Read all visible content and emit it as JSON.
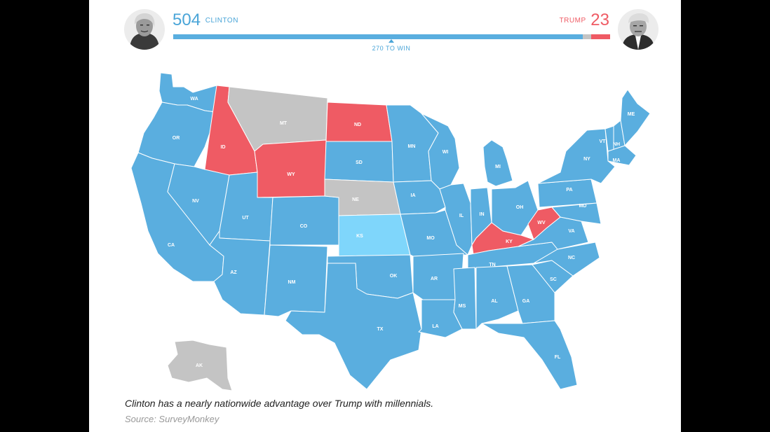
{
  "header": {
    "clinton_score": "504",
    "clinton_label": "CLINTON",
    "trump_label": "TRUMP",
    "trump_score": "23",
    "threshold_label": "270 TO WIN",
    "clinton_votes": 504,
    "trump_votes": 23,
    "total_votes": 538
  },
  "colors": {
    "clinton": "#5aaedf",
    "trump": "#ef5b64",
    "lean_clinton": "#7fd6fb",
    "tossup": "#c4c4c4",
    "clinton_text": "#4aa5d8",
    "trump_text": "#ef5b64"
  },
  "map": {
    "labels": [
      "WA",
      "OR",
      "CA",
      "ID",
      "NV",
      "MT",
      "WY",
      "UT",
      "AZ",
      "CO",
      "NM",
      "ND",
      "SD",
      "NE",
      "KS",
      "OK",
      "TX",
      "MN",
      "IA",
      "MO",
      "AR",
      "LA",
      "WI",
      "IL",
      "MI",
      "IN",
      "OH",
      "KY",
      "TN",
      "MS",
      "AL",
      "GA",
      "FL",
      "SC",
      "NC",
      "VA",
      "WV",
      "PA",
      "NY",
      "VT",
      "NH",
      "ME",
      "MA",
      "MD",
      "AK"
    ],
    "states": {
      "WA": "clinton",
      "OR": "clinton",
      "CA": "clinton",
      "ID": "trump",
      "NV": "clinton",
      "MT": "tossup",
      "WY": "trump",
      "UT": "clinton",
      "AZ": "clinton",
      "CO": "clinton",
      "NM": "clinton",
      "ND": "trump",
      "SD": "clinton",
      "NE": "tossup",
      "KS": "lean_clinton",
      "OK": "clinton",
      "TX": "clinton",
      "MN": "clinton",
      "IA": "clinton",
      "MO": "clinton",
      "AR": "clinton",
      "LA": "clinton",
      "WI": "clinton",
      "IL": "clinton",
      "MI": "clinton",
      "IN": "clinton",
      "OH": "clinton",
      "KY": "trump",
      "TN": "clinton",
      "MS": "clinton",
      "AL": "clinton",
      "GA": "clinton",
      "FL": "clinton",
      "SC": "clinton",
      "NC": "clinton",
      "VA": "clinton",
      "WV": "trump",
      "PA": "clinton",
      "NY": "clinton",
      "VT": "clinton",
      "NH": "clinton",
      "ME": "clinton",
      "MA": "clinton",
      "MD": "clinton",
      "AK": "tossup"
    }
  },
  "caption": "Clinton has a nearly nationwide advantage over Trump with millennials.",
  "source": "Source: SurveyMonkey"
}
